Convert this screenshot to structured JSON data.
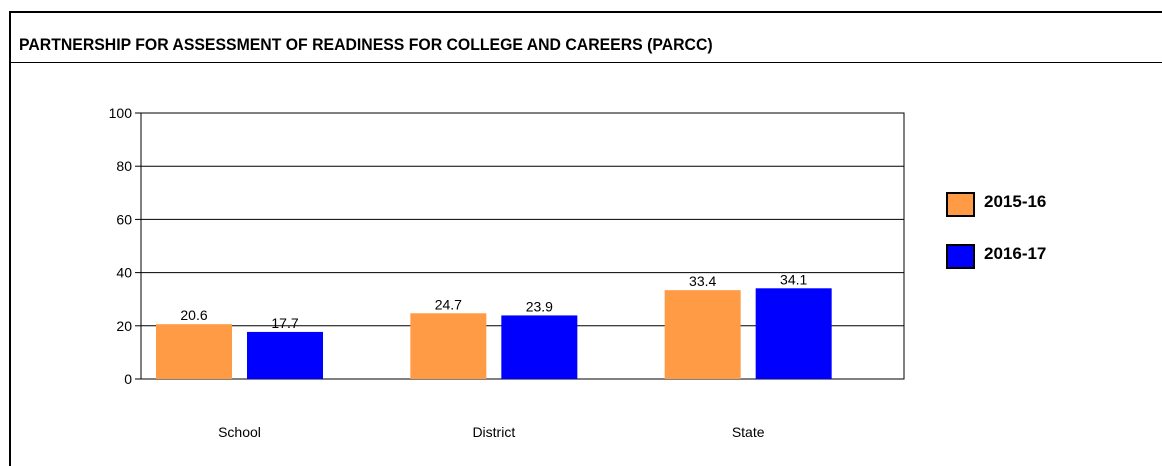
{
  "chart_data": {
    "type": "bar",
    "title": "PARTNERSHIP FOR ASSESSMENT OF READINESS FOR COLLEGE AND CAREERS (PARCC)",
    "categories": [
      "School",
      "District",
      "State"
    ],
    "series": [
      {
        "name": "2015-16",
        "values": [
          20.6,
          24.7,
          33.4
        ],
        "color": "#FF9A45"
      },
      {
        "name": "2016-17",
        "values": [
          17.7,
          23.9,
          34.1
        ],
        "color": "#0000FF"
      }
    ],
    "ylim": [
      0,
      100
    ],
    "yticks": [
      0,
      20,
      40,
      60,
      80,
      100
    ],
    "grid": true,
    "legend": "right"
  }
}
